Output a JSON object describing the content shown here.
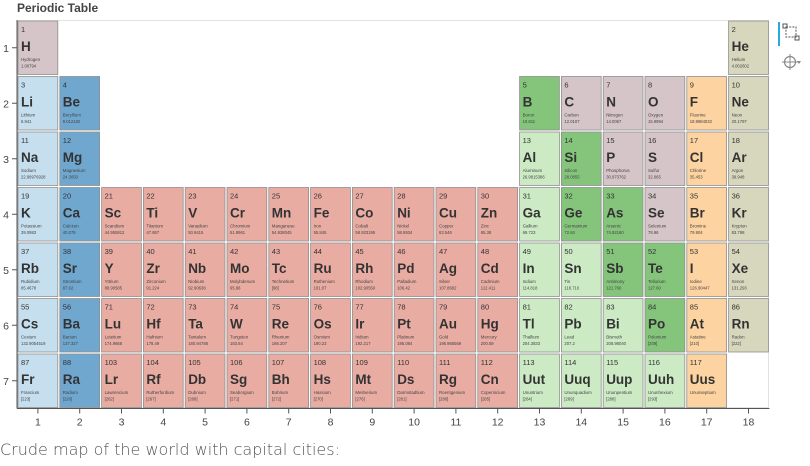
{
  "title": "Periodic Table",
  "caption": "Crude map of the world with capital cities:",
  "toolbar": {
    "tools": [
      {
        "name": "box-zoom-icon"
      },
      {
        "name": "crosshair-icon"
      }
    ]
  },
  "colors": {
    "alkali metal": "#c6dfee",
    "alkaline earth metal": "#6fa7cf",
    "metal": "#e9aca3",
    "metalloid": "#ccdcba",
    "halogen": "#fdd3a1",
    "nonmetal": "#d5c5c9",
    "noble gas": "#d6d7bd",
    "transition metal": "#e9aca3",
    "poor metal": "#ccebc5",
    "semimetal": "#84c47b",
    "lanthanoid": "#e9aca3",
    "actinoid": "#e9aca3",
    "metal-left": "#c6dfee",
    "hydrogen": "#d5c5c9"
  },
  "chart_data": {
    "type": "table",
    "xlim": [
      0.5,
      18.5
    ],
    "ylim": [
      7.5,
      0.5
    ],
    "x_ticks": [
      "1",
      "2",
      "3",
      "4",
      "5",
      "6",
      "7",
      "8",
      "9",
      "10",
      "11",
      "12",
      "13",
      "14",
      "15",
      "16",
      "17",
      "18"
    ],
    "y_ticks": [
      "1",
      "2",
      "3",
      "4",
      "5",
      "6",
      "7"
    ],
    "elements": [
      {
        "n": "1",
        "sym": "H",
        "name": "Hydrogen",
        "mass": "1.00794",
        "group": 1,
        "period": 1,
        "cls": "hydrogen"
      },
      {
        "n": "2",
        "sym": "He",
        "name": "Helium",
        "mass": "4.002602",
        "group": 18,
        "period": 1,
        "cls": "noble gas"
      },
      {
        "n": "3",
        "sym": "Li",
        "name": "Lithium",
        "mass": "6.941",
        "group": 1,
        "period": 2,
        "cls": "alkali metal"
      },
      {
        "n": "4",
        "sym": "Be",
        "name": "Beryllium",
        "mass": "9.012182",
        "group": 2,
        "period": 2,
        "cls": "alkaline earth metal"
      },
      {
        "n": "5",
        "sym": "B",
        "name": "Boron",
        "mass": "10.811",
        "group": 13,
        "period": 2,
        "cls": "semimetal"
      },
      {
        "n": "6",
        "sym": "C",
        "name": "Carbon",
        "mass": "12.0107",
        "group": 14,
        "period": 2,
        "cls": "nonmetal"
      },
      {
        "n": "7",
        "sym": "N",
        "name": "Nitrogen",
        "mass": "14.0067",
        "group": 15,
        "period": 2,
        "cls": "nonmetal"
      },
      {
        "n": "8",
        "sym": "O",
        "name": "Oxygen",
        "mass": "15.9994",
        "group": 16,
        "period": 2,
        "cls": "nonmetal"
      },
      {
        "n": "9",
        "sym": "F",
        "name": "Fluorine",
        "mass": "18.9984032",
        "group": 17,
        "period": 2,
        "cls": "halogen"
      },
      {
        "n": "10",
        "sym": "Ne",
        "name": "Neon",
        "mass": "20.1797",
        "group": 18,
        "period": 2,
        "cls": "noble gas"
      },
      {
        "n": "11",
        "sym": "Na",
        "name": "Sodium",
        "mass": "22.98976928",
        "group": 1,
        "period": 3,
        "cls": "alkali metal"
      },
      {
        "n": "12",
        "sym": "Mg",
        "name": "Magnesium",
        "mass": "24.3050",
        "group": 2,
        "period": 3,
        "cls": "alkaline earth metal"
      },
      {
        "n": "13",
        "sym": "Al",
        "name": "Aluminum",
        "mass": "26.9815386",
        "group": 13,
        "period": 3,
        "cls": "poor metal"
      },
      {
        "n": "14",
        "sym": "Si",
        "name": "Silicon",
        "mass": "28.0855",
        "group": 14,
        "period": 3,
        "cls": "semimetal"
      },
      {
        "n": "15",
        "sym": "P",
        "name": "Phosphorus",
        "mass": "30.973762",
        "group": 15,
        "period": 3,
        "cls": "nonmetal"
      },
      {
        "n": "16",
        "sym": "S",
        "name": "Sulfur",
        "mass": "32.065",
        "group": 16,
        "period": 3,
        "cls": "nonmetal"
      },
      {
        "n": "17",
        "sym": "Cl",
        "name": "Chlorine",
        "mass": "35.453",
        "group": 17,
        "period": 3,
        "cls": "halogen"
      },
      {
        "n": "18",
        "sym": "Ar",
        "name": "Argon",
        "mass": "39.948",
        "group": 18,
        "period": 3,
        "cls": "noble gas"
      },
      {
        "n": "19",
        "sym": "K",
        "name": "Potassium",
        "mass": "39.0983",
        "group": 1,
        "period": 4,
        "cls": "alkali metal"
      },
      {
        "n": "20",
        "sym": "Ca",
        "name": "Calcium",
        "mass": "40.078",
        "group": 2,
        "period": 4,
        "cls": "alkaline earth metal"
      },
      {
        "n": "21",
        "sym": "Sc",
        "name": "Scandium",
        "mass": "44.955912",
        "group": 3,
        "period": 4,
        "cls": "metal"
      },
      {
        "n": "22",
        "sym": "Ti",
        "name": "Titanium",
        "mass": "47.867",
        "group": 4,
        "period": 4,
        "cls": "metal"
      },
      {
        "n": "23",
        "sym": "V",
        "name": "Vanadium",
        "mass": "50.9415",
        "group": 5,
        "period": 4,
        "cls": "metal"
      },
      {
        "n": "24",
        "sym": "Cr",
        "name": "Chromium",
        "mass": "51.9961",
        "group": 6,
        "period": 4,
        "cls": "metal"
      },
      {
        "n": "25",
        "sym": "Mn",
        "name": "Manganese",
        "mass": "54.938045",
        "group": 7,
        "period": 4,
        "cls": "metal"
      },
      {
        "n": "26",
        "sym": "Fe",
        "name": "Iron",
        "mass": "55.845",
        "group": 8,
        "period": 4,
        "cls": "metal"
      },
      {
        "n": "27",
        "sym": "Co",
        "name": "Cobalt",
        "mass": "58.933195",
        "group": 9,
        "period": 4,
        "cls": "metal"
      },
      {
        "n": "28",
        "sym": "Ni",
        "name": "Nickel",
        "mass": "58.6934",
        "group": 10,
        "period": 4,
        "cls": "metal"
      },
      {
        "n": "29",
        "sym": "Cu",
        "name": "Copper",
        "mass": "63.546",
        "group": 11,
        "period": 4,
        "cls": "metal"
      },
      {
        "n": "30",
        "sym": "Zn",
        "name": "Zinc",
        "mass": "65.38",
        "group": 12,
        "period": 4,
        "cls": "metal"
      },
      {
        "n": "31",
        "sym": "Ga",
        "name": "Gallium",
        "mass": "69.723",
        "group": 13,
        "period": 4,
        "cls": "poor metal"
      },
      {
        "n": "32",
        "sym": "Ge",
        "name": "Germanium",
        "mass": "72.64",
        "group": 14,
        "period": 4,
        "cls": "semimetal"
      },
      {
        "n": "33",
        "sym": "As",
        "name": "Arsenic",
        "mass": "74.92160",
        "group": 15,
        "period": 4,
        "cls": "semimetal"
      },
      {
        "n": "34",
        "sym": "Se",
        "name": "Selenium",
        "mass": "78.96",
        "group": 16,
        "period": 4,
        "cls": "nonmetal"
      },
      {
        "n": "35",
        "sym": "Br",
        "name": "Bromine",
        "mass": "79.904",
        "group": 17,
        "period": 4,
        "cls": "halogen"
      },
      {
        "n": "36",
        "sym": "Kr",
        "name": "Krypton",
        "mass": "83.798",
        "group": 18,
        "period": 4,
        "cls": "noble gas"
      },
      {
        "n": "37",
        "sym": "Rb",
        "name": "Rubidium",
        "mass": "85.4678",
        "group": 1,
        "period": 5,
        "cls": "alkali metal"
      },
      {
        "n": "38",
        "sym": "Sr",
        "name": "Strontium",
        "mass": "87.62",
        "group": 2,
        "period": 5,
        "cls": "alkaline earth metal"
      },
      {
        "n": "39",
        "sym": "Y",
        "name": "Yttrium",
        "mass": "88.90585",
        "group": 3,
        "period": 5,
        "cls": "metal"
      },
      {
        "n": "40",
        "sym": "Zr",
        "name": "Zirconium",
        "mass": "91.224",
        "group": 4,
        "period": 5,
        "cls": "metal"
      },
      {
        "n": "41",
        "sym": "Nb",
        "name": "Niobium",
        "mass": "92.90638",
        "group": 5,
        "period": 5,
        "cls": "metal"
      },
      {
        "n": "42",
        "sym": "Mo",
        "name": "Molybdenum",
        "mass": "95.96",
        "group": 6,
        "period": 5,
        "cls": "metal"
      },
      {
        "n": "43",
        "sym": "Tc",
        "name": "Technetium",
        "mass": "[98]",
        "group": 7,
        "period": 5,
        "cls": "metal"
      },
      {
        "n": "44",
        "sym": "Ru",
        "name": "Ruthenium",
        "mass": "101.07",
        "group": 8,
        "period": 5,
        "cls": "metal"
      },
      {
        "n": "45",
        "sym": "Rh",
        "name": "Rhodium",
        "mass": "102.90550",
        "group": 9,
        "period": 5,
        "cls": "metal"
      },
      {
        "n": "46",
        "sym": "Pd",
        "name": "Palladium",
        "mass": "106.42",
        "group": 10,
        "period": 5,
        "cls": "metal"
      },
      {
        "n": "47",
        "sym": "Ag",
        "name": "Silver",
        "mass": "107.8682",
        "group": 11,
        "period": 5,
        "cls": "metal"
      },
      {
        "n": "48",
        "sym": "Cd",
        "name": "Cadmium",
        "mass": "112.411",
        "group": 12,
        "period": 5,
        "cls": "metal"
      },
      {
        "n": "49",
        "sym": "In",
        "name": "Indium",
        "mass": "114.818",
        "group": 13,
        "period": 5,
        "cls": "poor metal"
      },
      {
        "n": "50",
        "sym": "Sn",
        "name": "Tin",
        "mass": "118.710",
        "group": 14,
        "period": 5,
        "cls": "poor metal"
      },
      {
        "n": "51",
        "sym": "Sb",
        "name": "Antimony",
        "mass": "121.760",
        "group": 15,
        "period": 5,
        "cls": "semimetal"
      },
      {
        "n": "52",
        "sym": "Te",
        "name": "Tellurium",
        "mass": "127.60",
        "group": 16,
        "period": 5,
        "cls": "semimetal"
      },
      {
        "n": "53",
        "sym": "I",
        "name": "Iodine",
        "mass": "126.90447",
        "group": 17,
        "period": 5,
        "cls": "halogen"
      },
      {
        "n": "54",
        "sym": "Xe",
        "name": "Xenon",
        "mass": "131.293",
        "group": 18,
        "period": 5,
        "cls": "noble gas"
      },
      {
        "n": "55",
        "sym": "Cs",
        "name": "Cesium",
        "mass": "132.9054519",
        "group": 1,
        "period": 6,
        "cls": "alkali metal"
      },
      {
        "n": "56",
        "sym": "Ba",
        "name": "Barium",
        "mass": "137.327",
        "group": 2,
        "period": 6,
        "cls": "alkaline earth metal"
      },
      {
        "n": "71",
        "sym": "Lu",
        "name": "Lutetium",
        "mass": "174.9668",
        "group": 3,
        "period": 6,
        "cls": "metal"
      },
      {
        "n": "72",
        "sym": "Hf",
        "name": "Hafnium",
        "mass": "178.49",
        "group": 4,
        "period": 6,
        "cls": "metal"
      },
      {
        "n": "73",
        "sym": "Ta",
        "name": "Tantalum",
        "mass": "180.94788",
        "group": 5,
        "period": 6,
        "cls": "metal"
      },
      {
        "n": "74",
        "sym": "W",
        "name": "Tungsten",
        "mass": "183.84",
        "group": 6,
        "period": 6,
        "cls": "metal"
      },
      {
        "n": "75",
        "sym": "Re",
        "name": "Rhenium",
        "mass": "186.207",
        "group": 7,
        "period": 6,
        "cls": "metal"
      },
      {
        "n": "76",
        "sym": "Os",
        "name": "Osmium",
        "mass": "190.23",
        "group": 8,
        "period": 6,
        "cls": "metal"
      },
      {
        "n": "77",
        "sym": "Ir",
        "name": "Iridium",
        "mass": "192.217",
        "group": 9,
        "period": 6,
        "cls": "metal"
      },
      {
        "n": "78",
        "sym": "Pt",
        "name": "Platinum",
        "mass": "195.084",
        "group": 10,
        "period": 6,
        "cls": "metal"
      },
      {
        "n": "79",
        "sym": "Au",
        "name": "Gold",
        "mass": "196.966569",
        "group": 11,
        "period": 6,
        "cls": "metal"
      },
      {
        "n": "80",
        "sym": "Hg",
        "name": "Mercury",
        "mass": "200.59",
        "group": 12,
        "period": 6,
        "cls": "metal"
      },
      {
        "n": "81",
        "sym": "Tl",
        "name": "Thallium",
        "mass": "204.3833",
        "group": 13,
        "period": 6,
        "cls": "poor metal"
      },
      {
        "n": "82",
        "sym": "Pb",
        "name": "Lead",
        "mass": "207.2",
        "group": 14,
        "period": 6,
        "cls": "poor metal"
      },
      {
        "n": "83",
        "sym": "Bi",
        "name": "Bismuth",
        "mass": "208.98040",
        "group": 15,
        "period": 6,
        "cls": "poor metal"
      },
      {
        "n": "84",
        "sym": "Po",
        "name": "Polonium",
        "mass": "[209]",
        "group": 16,
        "period": 6,
        "cls": "semimetal"
      },
      {
        "n": "85",
        "sym": "At",
        "name": "Astatine",
        "mass": "[210]",
        "group": 17,
        "period": 6,
        "cls": "halogen"
      },
      {
        "n": "86",
        "sym": "Rn",
        "name": "Radon",
        "mass": "[222]",
        "group": 18,
        "period": 6,
        "cls": "noble gas"
      },
      {
        "n": "87",
        "sym": "Fr",
        "name": "Francium",
        "mass": "[223]",
        "group": 1,
        "period": 7,
        "cls": "alkali metal"
      },
      {
        "n": "88",
        "sym": "Ra",
        "name": "Radium",
        "mass": "[226]",
        "group": 2,
        "period": 7,
        "cls": "alkaline earth metal"
      },
      {
        "n": "103",
        "sym": "Lr",
        "name": "Lawrencium",
        "mass": "[262]",
        "group": 3,
        "period": 7,
        "cls": "metal"
      },
      {
        "n": "104",
        "sym": "Rf",
        "name": "Rutherfordium",
        "mass": "[267]",
        "group": 4,
        "period": 7,
        "cls": "metal"
      },
      {
        "n": "105",
        "sym": "Db",
        "name": "Dubnium",
        "mass": "[268]",
        "group": 5,
        "period": 7,
        "cls": "metal"
      },
      {
        "n": "106",
        "sym": "Sg",
        "name": "Seaborgium",
        "mass": "[271]",
        "group": 6,
        "period": 7,
        "cls": "metal"
      },
      {
        "n": "107",
        "sym": "Bh",
        "name": "Bohrium",
        "mass": "[272]",
        "group": 7,
        "period": 7,
        "cls": "metal"
      },
      {
        "n": "108",
        "sym": "Hs",
        "name": "Hassium",
        "mass": "[270]",
        "group": 8,
        "period": 7,
        "cls": "metal"
      },
      {
        "n": "109",
        "sym": "Mt",
        "name": "Meitnerium",
        "mass": "[276]",
        "group": 9,
        "period": 7,
        "cls": "metal"
      },
      {
        "n": "110",
        "sym": "Ds",
        "name": "Darmstadtium",
        "mass": "[281]",
        "group": 10,
        "period": 7,
        "cls": "metal"
      },
      {
        "n": "111",
        "sym": "Rg",
        "name": "Roentgenium",
        "mass": "[280]",
        "group": 11,
        "period": 7,
        "cls": "metal"
      },
      {
        "n": "112",
        "sym": "Cn",
        "name": "Copernicium",
        "mass": "[285]",
        "group": 12,
        "period": 7,
        "cls": "metal"
      },
      {
        "n": "113",
        "sym": "Uut",
        "name": "Ununtrium",
        "mass": "[284]",
        "group": 13,
        "period": 7,
        "cls": "poor metal"
      },
      {
        "n": "114",
        "sym": "Uuq",
        "name": "Ununquadium",
        "mass": "[289]",
        "group": 14,
        "period": 7,
        "cls": "poor metal"
      },
      {
        "n": "115",
        "sym": "Uup",
        "name": "Ununpentium",
        "mass": "[288]",
        "group": 15,
        "period": 7,
        "cls": "poor metal"
      },
      {
        "n": "116",
        "sym": "Uuh",
        "name": "Ununhexium",
        "mass": "[293]",
        "group": 16,
        "period": 7,
        "cls": "poor metal"
      },
      {
        "n": "117",
        "sym": "Uus",
        "name": "Ununseptium",
        "mass": "",
        "group": 17,
        "period": 7,
        "cls": "halogen"
      }
    ]
  }
}
